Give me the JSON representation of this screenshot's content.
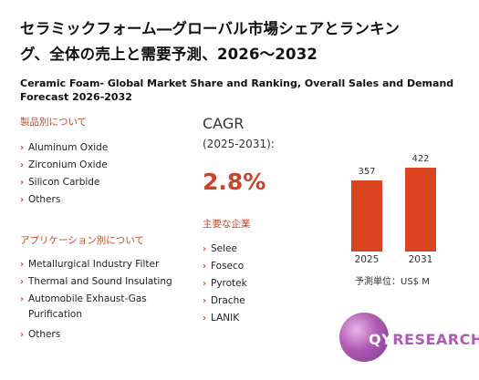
{
  "title_jp_line1": "セラミックフォーム―グローバル市場シェアとランキン",
  "title_jp_line2": "グ、全体の売上と需要予測、2026〜2032",
  "title_en": "Ceramic Foam- Global Market Share and Ranking, Overall Sales and Demand Forecast 2026-2032",
  "segments": {
    "label": "製品別について",
    "items": [
      "Aluminum Oxide",
      "Zirconium Oxide",
      "Silicon Carbide",
      "Others"
    ]
  },
  "applications": {
    "label": "アプリケーション別について",
    "items": [
      "Metallurgical Industry Filter",
      "Thermal and Sound Insulating",
      "Automobile Exhaust-Gas Purification",
      "Others"
    ]
  },
  "cagr": {
    "label": "CAGR",
    "range": "(2025-2031):",
    "value": "2.8%"
  },
  "players": {
    "label": "主要な企業",
    "items": [
      "Selee",
      "Foseco",
      "Pyrotek",
      "Drache",
      "LANIK"
    ]
  },
  "chart_data": {
    "type": "bar",
    "categories": [
      "2025",
      "2031"
    ],
    "values": [
      357,
      422
    ],
    "ylim": [
      0,
      422
    ],
    "unit_label": "予測単位：US$ M",
    "bar_color": "#d9431e"
  },
  "logo": {
    "q": "QY",
    "rest": "RESEARCH"
  }
}
